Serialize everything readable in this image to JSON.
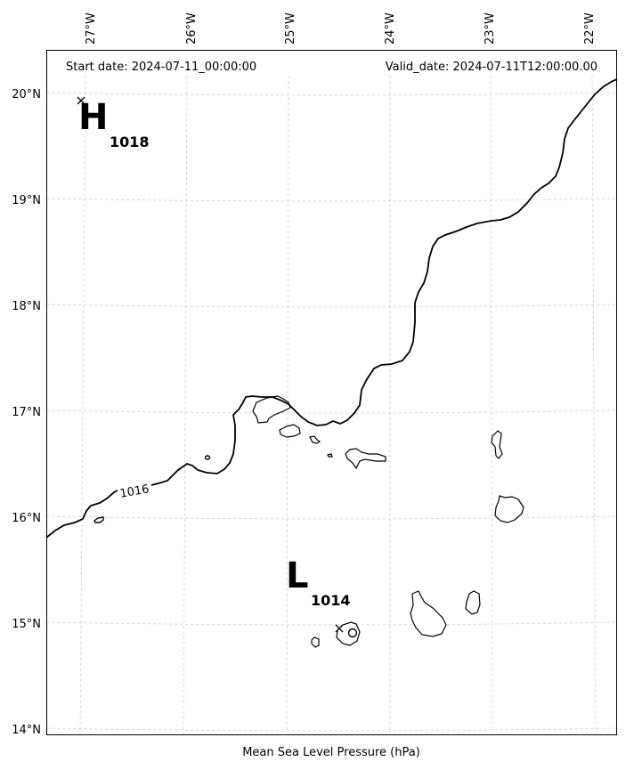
{
  "header": {
    "start_date": "Start date: 2024-07-11_00:00:00",
    "valid_date": "Valid_date: 2024-07-11T12:00:00.00"
  },
  "footer": {
    "xlabel": "Mean Sea Level Pressure (hPa)"
  },
  "axes": {
    "lon_ticks": [
      "27°W",
      "26°W",
      "25°W",
      "24°W",
      "23°W",
      "22°W"
    ],
    "lat_ticks": [
      "20°N",
      "19°N",
      "18°N",
      "17°N",
      "16°N",
      "15°N",
      "14°N"
    ]
  },
  "pressure_centers": {
    "high": {
      "letter": "H",
      "value": "1018"
    },
    "low": {
      "letter": "L",
      "value": "1014"
    }
  },
  "contours": {
    "isobar_label": "1016"
  }
}
